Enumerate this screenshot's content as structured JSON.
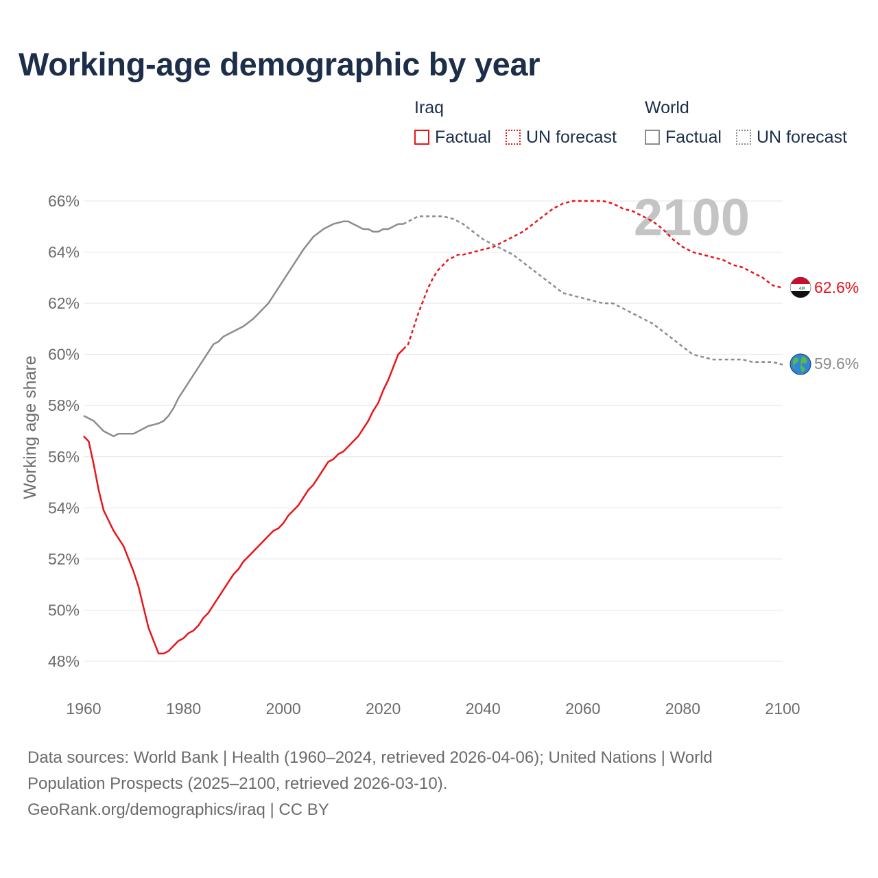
{
  "title": "Working-age demographic by year",
  "legend": {
    "groups": [
      {
        "title": "Iraq",
        "items": [
          {
            "label": "Factual",
            "style": "solid",
            "color": "#e8141a"
          },
          {
            "label": "UN forecast",
            "style": "dotted",
            "color": "#e8141a"
          }
        ]
      },
      {
        "title": "World",
        "items": [
          {
            "label": "Factual",
            "style": "solid",
            "color": "#8c8c8c"
          },
          {
            "label": "UN forecast",
            "style": "dotted",
            "color": "#8c8c8c"
          }
        ]
      }
    ]
  },
  "year_watermark": "2100",
  "end_labels": {
    "iraq": "62.6%",
    "world": "59.6%"
  },
  "icons": {
    "iraq": "iraq-flag-icon",
    "world": "globe-icon"
  },
  "sources": {
    "line1": "Data sources: World Bank | Health (1960–2024, retrieved 2026-04-06); United Nations | World",
    "line2": "Population Prospects (2025–2100, retrieved 2026-03-10).",
    "line3": "GeoRank.org/demographics/iraq | CC BY"
  },
  "chart_data": {
    "type": "line",
    "title": "Working-age demographic by year",
    "xlabel": "",
    "ylabel": "Working age share",
    "xlim": [
      1960,
      2100
    ],
    "ylim": [
      47,
      67
    ],
    "xticks": [
      1960,
      1980,
      2000,
      2020,
      2040,
      2060,
      2080,
      2100
    ],
    "xtick_labels": [
      "1960",
      "1980",
      "2000",
      "2020",
      "2040",
      "2060",
      "2080",
      "2100"
    ],
    "yticks": [
      48,
      50,
      52,
      54,
      56,
      58,
      60,
      62,
      64,
      66
    ],
    "ytick_labels": [
      "48%",
      "50%",
      "52%",
      "54%",
      "56%",
      "58%",
      "60%",
      "62%",
      "64%",
      "66%"
    ],
    "grid": true,
    "series": [
      {
        "name": "Iraq Factual",
        "color": "#e8141a",
        "style": "solid",
        "x": [
          1960,
          1961,
          1962,
          1963,
          1964,
          1965,
          1966,
          1967,
          1968,
          1969,
          1970,
          1971,
          1972,
          1973,
          1974,
          1975,
          1976,
          1977,
          1978,
          1979,
          1980,
          1981,
          1982,
          1983,
          1984,
          1985,
          1986,
          1987,
          1988,
          1989,
          1990,
          1991,
          1992,
          1993,
          1994,
          1995,
          1996,
          1997,
          1998,
          1999,
          2000,
          2001,
          2002,
          2003,
          2004,
          2005,
          2006,
          2007,
          2008,
          2009,
          2010,
          2011,
          2012,
          2013,
          2014,
          2015,
          2016,
          2017,
          2018,
          2019,
          2020,
          2021,
          2022,
          2023,
          2024
        ],
        "y": [
          56.8,
          56.6,
          55.7,
          54.7,
          53.9,
          53.5,
          53.1,
          52.8,
          52.5,
          52.0,
          51.5,
          50.9,
          50.1,
          49.3,
          48.8,
          48.3,
          48.3,
          48.4,
          48.6,
          48.8,
          48.9,
          49.1,
          49.2,
          49.4,
          49.7,
          49.9,
          50.2,
          50.5,
          50.8,
          51.1,
          51.4,
          51.6,
          51.9,
          52.1,
          52.3,
          52.5,
          52.7,
          52.9,
          53.1,
          53.2,
          53.4,
          53.7,
          53.9,
          54.1,
          54.4,
          54.7,
          54.9,
          55.2,
          55.5,
          55.8,
          55.9,
          56.1,
          56.2,
          56.4,
          56.6,
          56.8,
          57.1,
          57.4,
          57.8,
          58.1,
          58.6,
          59.0,
          59.5,
          60.0,
          60.2
        ]
      },
      {
        "name": "Iraq UN forecast",
        "color": "#e8141a",
        "style": "dashed",
        "x": [
          2024,
          2025,
          2026,
          2027,
          2028,
          2029,
          2030,
          2031,
          2032,
          2033,
          2034,
          2035,
          2036,
          2038,
          2040,
          2042,
          2044,
          2046,
          2048,
          2050,
          2052,
          2054,
          2056,
          2058,
          2060,
          2062,
          2064,
          2066,
          2068,
          2070,
          2072,
          2074,
          2076,
          2078,
          2080,
          2082,
          2084,
          2086,
          2088,
          2090,
          2092,
          2094,
          2096,
          2098,
          2100
        ],
        "y": [
          60.2,
          60.4,
          61.0,
          61.6,
          62.1,
          62.6,
          63.0,
          63.3,
          63.5,
          63.7,
          63.8,
          63.9,
          63.9,
          64.0,
          64.1,
          64.2,
          64.4,
          64.6,
          64.8,
          65.1,
          65.4,
          65.7,
          65.9,
          66.0,
          66.0,
          66.0,
          66.0,
          65.9,
          65.7,
          65.6,
          65.4,
          65.2,
          64.9,
          64.5,
          64.2,
          64.0,
          63.9,
          63.8,
          63.7,
          63.5,
          63.4,
          63.2,
          63.0,
          62.7,
          62.6
        ]
      },
      {
        "name": "World Factual",
        "color": "#8c8c8c",
        "style": "solid",
        "x": [
          1960,
          1962,
          1964,
          1966,
          1967,
          1968,
          1970,
          1972,
          1973,
          1975,
          1976,
          1977,
          1978,
          1979,
          1980,
          1982,
          1984,
          1985,
          1986,
          1987,
          1988,
          1990,
          1992,
          1994,
          1996,
          1997,
          1998,
          2000,
          2002,
          2004,
          2006,
          2008,
          2010,
          2012,
          2013,
          2014,
          2015,
          2016,
          2017,
          2018,
          2019,
          2020,
          2021,
          2022,
          2023,
          2024
        ],
        "y": [
          57.6,
          57.4,
          57.0,
          56.8,
          56.9,
          56.9,
          56.9,
          57.1,
          57.2,
          57.3,
          57.4,
          57.6,
          57.9,
          58.3,
          58.6,
          59.2,
          59.8,
          60.1,
          60.4,
          60.5,
          60.7,
          60.9,
          61.1,
          61.4,
          61.8,
          62.0,
          62.3,
          62.9,
          63.5,
          64.1,
          64.6,
          64.9,
          65.1,
          65.2,
          65.2,
          65.1,
          65.0,
          64.9,
          64.9,
          64.8,
          64.8,
          64.9,
          64.9,
          65.0,
          65.1,
          65.1
        ]
      },
      {
        "name": "World UN forecast",
        "color": "#8c8c8c",
        "style": "dashed",
        "x": [
          2024,
          2025,
          2026,
          2027,
          2028,
          2030,
          2032,
          2034,
          2036,
          2038,
          2040,
          2042,
          2044,
          2046,
          2048,
          2050,
          2052,
          2054,
          2056,
          2058,
          2060,
          2062,
          2064,
          2066,
          2068,
          2070,
          2072,
          2074,
          2076,
          2078,
          2080,
          2082,
          2084,
          2086,
          2088,
          2090,
          2092,
          2094,
          2096,
          2098,
          2100
        ],
        "y": [
          65.1,
          65.2,
          65.3,
          65.4,
          65.4,
          65.4,
          65.4,
          65.3,
          65.1,
          64.8,
          64.5,
          64.3,
          64.1,
          63.9,
          63.6,
          63.3,
          63.0,
          62.7,
          62.4,
          62.3,
          62.2,
          62.1,
          62.0,
          62.0,
          61.8,
          61.6,
          61.4,
          61.2,
          60.9,
          60.6,
          60.3,
          60.0,
          59.9,
          59.8,
          59.8,
          59.8,
          59.8,
          59.7,
          59.7,
          59.7,
          59.6
        ]
      }
    ]
  }
}
